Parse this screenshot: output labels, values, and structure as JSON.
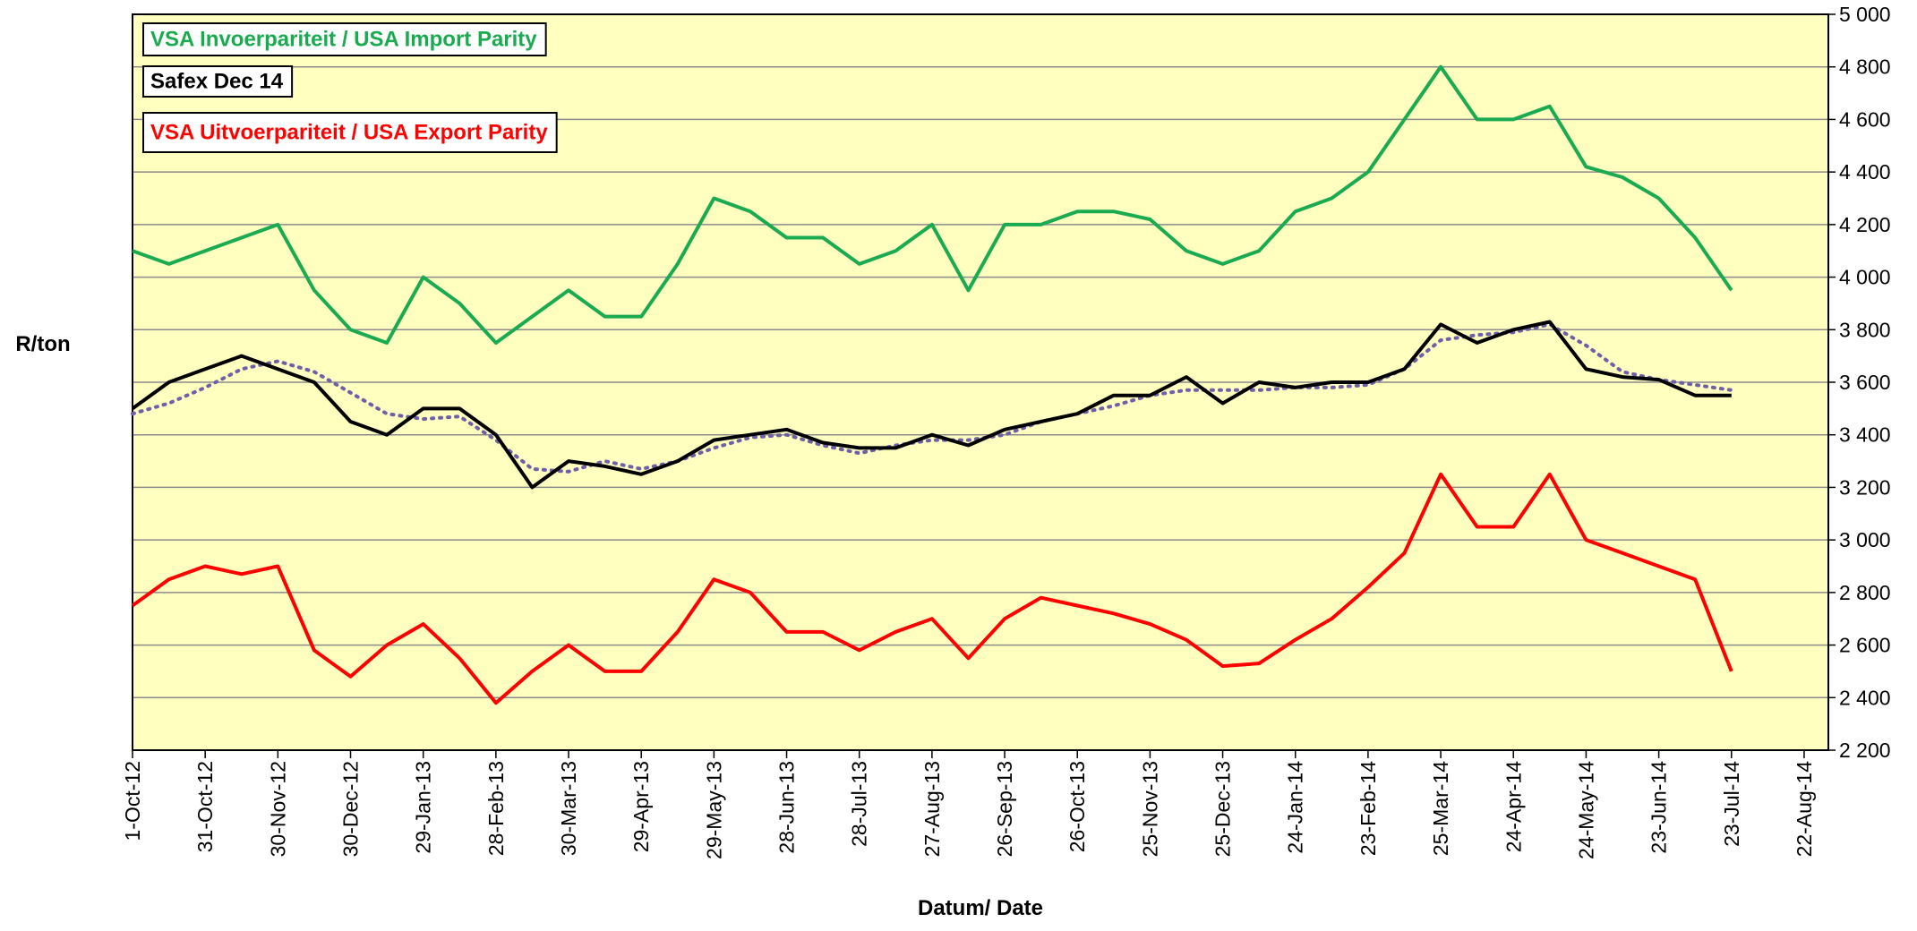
{
  "chart_data": {
    "type": "line",
    "xlabel": "Datum/ Date",
    "ylabel": "R/ton",
    "legend": "upper left",
    "grid": true,
    "background": "#ffffc0",
    "xlim": [
      "2012-10-01",
      "2014-09-01"
    ],
    "ylim": [
      2200,
      5000
    ],
    "yticks": [
      {
        "value": 2200,
        "label": "2 200"
      },
      {
        "value": 2400,
        "label": "2 400"
      },
      {
        "value": 2600,
        "label": "2 600"
      },
      {
        "value": 2800,
        "label": "2 800"
      },
      {
        "value": 3000,
        "label": "3 000"
      },
      {
        "value": 3200,
        "label": "3 200"
      },
      {
        "value": 3400,
        "label": "3 400"
      },
      {
        "value": 3600,
        "label": "3 600"
      },
      {
        "value": 3800,
        "label": "3 800"
      },
      {
        "value": 4000,
        "label": "4 000"
      },
      {
        "value": 4200,
        "label": "4 200"
      },
      {
        "value": 4400,
        "label": "4 400"
      },
      {
        "value": 4600,
        "label": "4 600"
      },
      {
        "value": 4800,
        "label": "4 800"
      },
      {
        "value": 5000,
        "label": "5 000"
      }
    ],
    "xticks": [
      {
        "value": "2012-10-01",
        "label": "1-Oct-12"
      },
      {
        "value": "2012-10-31",
        "label": "31-Oct-12"
      },
      {
        "value": "2012-11-30",
        "label": "30-Nov-12"
      },
      {
        "value": "2012-12-30",
        "label": "30-Dec-12"
      },
      {
        "value": "2013-01-29",
        "label": "29-Jan-13"
      },
      {
        "value": "2013-02-28",
        "label": "28-Feb-13"
      },
      {
        "value": "2013-03-30",
        "label": "30-Mar-13"
      },
      {
        "value": "2013-04-29",
        "label": "29-Apr-13"
      },
      {
        "value": "2013-05-29",
        "label": "29-May-13"
      },
      {
        "value": "2013-06-28",
        "label": "28-Jun-13"
      },
      {
        "value": "2013-07-28",
        "label": "28-Jul-13"
      },
      {
        "value": "2013-08-27",
        "label": "27-Aug-13"
      },
      {
        "value": "2013-09-26",
        "label": "26-Sep-13"
      },
      {
        "value": "2013-10-26",
        "label": "26-Oct-13"
      },
      {
        "value": "2013-11-25",
        "label": "25-Nov-13"
      },
      {
        "value": "2013-12-25",
        "label": "25-Dec-13"
      },
      {
        "value": "2014-01-24",
        "label": "24-Jan-14"
      },
      {
        "value": "2014-02-23",
        "label": "23-Feb-14"
      },
      {
        "value": "2014-03-25",
        "label": "25-Mar-14"
      },
      {
        "value": "2014-04-24",
        "label": "24-Apr-14"
      },
      {
        "value": "2014-05-24",
        "label": "24-May-14"
      },
      {
        "value": "2014-06-23",
        "label": "23-Jun-14"
      },
      {
        "value": "2014-07-23",
        "label": "23-Jul-14"
      },
      {
        "value": "2014-08-22",
        "label": "22-Aug-14"
      }
    ],
    "x": [
      "2012-10-01",
      "2012-10-16",
      "2012-10-31",
      "2012-11-15",
      "2012-11-30",
      "2012-12-15",
      "2012-12-30",
      "2013-01-14",
      "2013-01-29",
      "2013-02-13",
      "2013-02-28",
      "2013-03-15",
      "2013-03-30",
      "2013-04-14",
      "2013-04-29",
      "2013-05-14",
      "2013-05-29",
      "2013-06-13",
      "2013-06-28",
      "2013-07-13",
      "2013-07-28",
      "2013-08-12",
      "2013-08-27",
      "2013-09-11",
      "2013-09-26",
      "2013-10-11",
      "2013-10-26",
      "2013-11-10",
      "2013-11-25",
      "2013-12-10",
      "2013-12-25",
      "2014-01-09",
      "2014-01-24",
      "2014-02-08",
      "2014-02-23",
      "2014-03-10",
      "2014-03-25",
      "2014-04-09",
      "2014-04-24",
      "2014-05-09",
      "2014-05-24",
      "2014-06-08",
      "2014-06-23",
      "2014-07-08",
      "2014-07-23"
    ],
    "series": [
      {
        "name": "VSA Invoerpariteit / USA Import Parity",
        "color": "#1aab50",
        "style": "solid",
        "values": [
          4100,
          4050,
          4100,
          4150,
          4200,
          3950,
          3800,
          3750,
          4000,
          3900,
          3750,
          3850,
          3950,
          3850,
          3850,
          4050,
          4300,
          4250,
          4150,
          4150,
          4050,
          4100,
          4200,
          3950,
          4200,
          4200,
          4250,
          4250,
          4220,
          4100,
          4050,
          4100,
          4250,
          4300,
          4400,
          4600,
          4800,
          4600,
          4600,
          4650,
          4420,
          4380,
          4300,
          4150,
          3950
        ]
      },
      {
        "name": "Safex Dec 14",
        "color": "#000000",
        "style": "solid",
        "values": [
          3500,
          3600,
          3650,
          3700,
          3650,
          3600,
          3450,
          3400,
          3500,
          3500,
          3400,
          3200,
          3300,
          3280,
          3250,
          3300,
          3380,
          3400,
          3420,
          3370,
          3350,
          3350,
          3400,
          3360,
          3420,
          3450,
          3480,
          3550,
          3550,
          3620,
          3520,
          3600,
          3580,
          3600,
          3600,
          3650,
          3820,
          3750,
          3800,
          3830,
          3650,
          3620,
          3610,
          3550,
          3550
        ]
      },
      {
        "name": "VSA Uitvoerpariteit / USA Export Parity",
        "color": "#ff0000",
        "style": "solid",
        "values": [
          2750,
          2850,
          2900,
          2870,
          2900,
          2580,
          2480,
          2600,
          2680,
          2550,
          2380,
          2500,
          2600,
          2500,
          2500,
          2650,
          2850,
          2800,
          2650,
          2650,
          2580,
          2650,
          2700,
          2550,
          2700,
          2780,
          2750,
          2720,
          2680,
          2620,
          2520,
          2530,
          2620,
          2700,
          2820,
          2950,
          3250,
          3050,
          3050,
          3250,
          3000,
          2950,
          2900,
          2850,
          2500
        ]
      },
      {
        "color": "#6e5fa8",
        "style": "dotted",
        "values": [
          3480,
          3520,
          3580,
          3650,
          3680,
          3640,
          3560,
          3480,
          3460,
          3470,
          3380,
          3270,
          3260,
          3300,
          3270,
          3300,
          3350,
          3390,
          3400,
          3360,
          3330,
          3360,
          3380,
          3380,
          3400,
          3450,
          3480,
          3510,
          3550,
          3570,
          3570,
          3570,
          3580,
          3580,
          3590,
          3650,
          3760,
          3780,
          3790,
          3820,
          3740,
          3640,
          3610,
          3590,
          3570
        ]
      }
    ]
  }
}
